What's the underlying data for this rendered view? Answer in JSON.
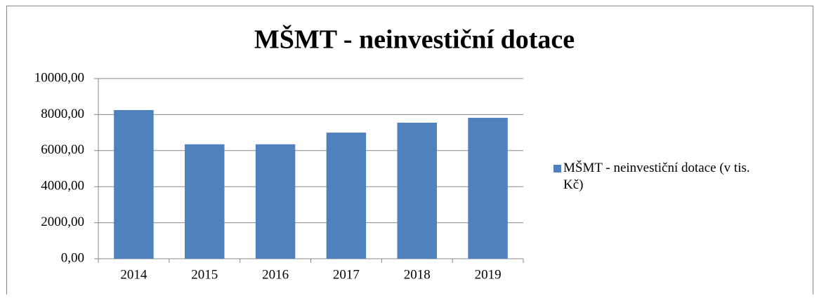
{
  "chart_data": {
    "type": "bar",
    "title": "MŠMT - neinvestiční dotace",
    "categories": [
      "2014",
      "2015",
      "2016",
      "2017",
      "2018",
      "2019"
    ],
    "series": [
      {
        "name": "MŠMT - neinvestiční dotace (v tis. Kč)",
        "color": "#4f81bd",
        "values": [
          8250,
          6350,
          6350,
          7000,
          7550,
          7820
        ]
      }
    ],
    "ylim": [
      0,
      10000
    ],
    "yticks": [
      {
        "value": 0,
        "label": "0,00"
      },
      {
        "value": 2000,
        "label": "2000,00"
      },
      {
        "value": 4000,
        "label": "4000,00"
      },
      {
        "value": 6000,
        "label": "6000,00"
      },
      {
        "value": 8000,
        "label": "8000,00"
      },
      {
        "value": 10000,
        "label": "10000,00"
      }
    ],
    "grid": true,
    "legend": "right"
  }
}
